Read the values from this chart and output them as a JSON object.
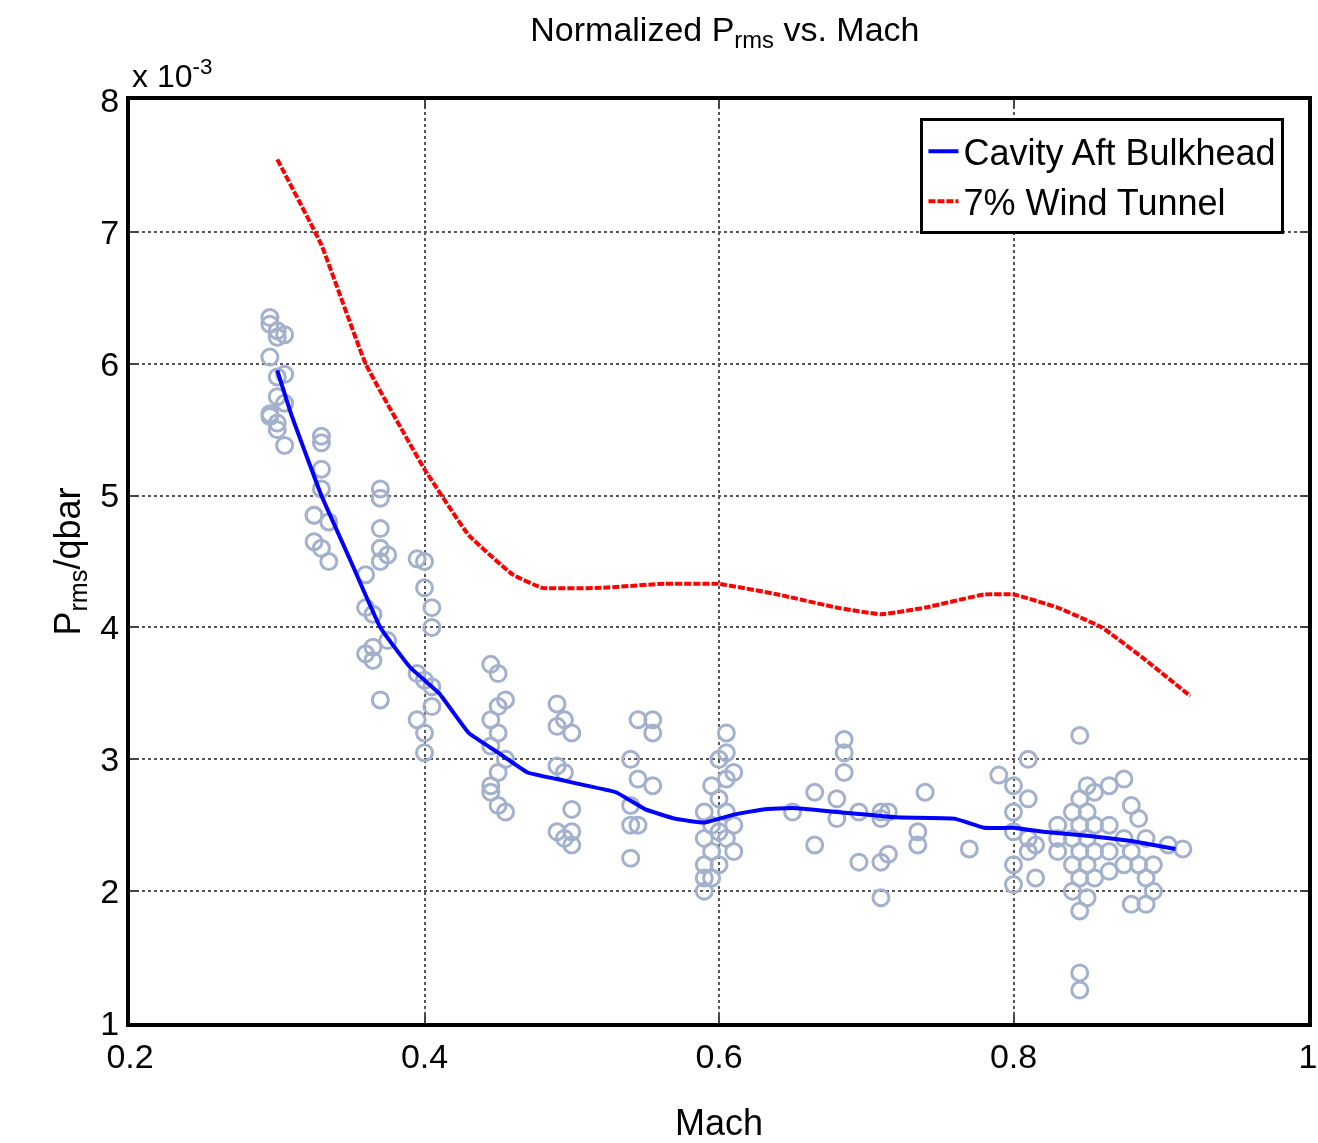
{
  "chart_data": {
    "type": "line",
    "title": "Normalized P$_{rms}$ vs. Mach",
    "xlabel": "Mach",
    "ylabel": "P$_{rms}$/qbar",
    "annotations": [
      "x 10$^{-3}$"
    ],
    "xlim": [
      0.2,
      1
    ],
    "xticks": [
      0.2,
      0.4,
      0.6,
      0.8,
      1
    ],
    "ylim": [
      1,
      8
    ],
    "yticks": [
      1,
      2,
      3,
      4,
      5,
      6,
      7,
      8
    ],
    "grid": true,
    "legend": "top right",
    "series": [
      {
        "type": "scatter",
        "color": "#a3b1cc",
        "marker": "circle",
        "x": [
          0.295,
          0.295,
          0.295,
          0.295,
          0.295,
          0.3,
          0.3,
          0.3,
          0.3,
          0.3,
          0.3,
          0.305,
          0.305,
          0.305,
          0.305,
          0.325,
          0.325,
          0.325,
          0.33,
          0.33,
          0.33,
          0.33,
          0.33,
          0.335,
          0.335,
          0.36,
          0.36,
          0.36,
          0.365,
          0.365,
          0.365,
          0.37,
          0.37,
          0.37,
          0.37,
          0.37,
          0.37,
          0.375,
          0.375,
          0.395,
          0.395,
          0.395,
          0.4,
          0.4,
          0.4,
          0.4,
          0.4,
          0.405,
          0.405,
          0.405,
          0.405,
          0.445,
          0.445,
          0.445,
          0.445,
          0.445,
          0.45,
          0.45,
          0.45,
          0.45,
          0.45,
          0.455,
          0.455,
          0.455,
          0.49,
          0.49,
          0.49,
          0.49,
          0.495,
          0.495,
          0.495,
          0.5,
          0.5,
          0.5,
          0.5,
          0.54,
          0.54,
          0.54,
          0.54,
          0.545,
          0.545,
          0.545,
          0.555,
          0.555,
          0.555,
          0.59,
          0.59,
          0.59,
          0.59,
          0.59,
          0.595,
          0.595,
          0.595,
          0.595,
          0.6,
          0.6,
          0.6,
          0.6,
          0.605,
          0.605,
          0.605,
          0.605,
          0.605,
          0.61,
          0.61,
          0.61,
          0.65,
          0.665,
          0.665,
          0.68,
          0.68,
          0.685,
          0.685,
          0.685,
          0.695,
          0.695,
          0.71,
          0.71,
          0.71,
          0.71,
          0.715,
          0.715,
          0.735,
          0.735,
          0.74,
          0.77,
          0.79,
          0.8,
          0.8,
          0.8,
          0.8,
          0.8,
          0.81,
          0.81,
          0.81,
          0.81,
          0.815,
          0.815,
          0.83,
          0.83,
          0.83,
          0.84,
          0.84,
          0.84,
          0.84,
          0.845,
          0.845,
          0.845,
          0.845,
          0.845,
          0.845,
          0.845,
          0.845,
          0.85,
          0.85,
          0.85,
          0.85,
          0.85,
          0.855,
          0.855,
          0.855,
          0.855,
          0.865,
          0.865,
          0.865,
          0.865,
          0.875,
          0.875,
          0.875,
          0.88,
          0.88,
          0.88,
          0.885,
          0.885,
          0.89,
          0.89,
          0.89,
          0.895,
          0.895,
          0.905,
          0.915
        ],
        "values": [
          6.35,
          6.3,
          6.05,
          5.62,
          5.6,
          6.25,
          6.2,
          5.9,
          5.75,
          5.55,
          5.5,
          6.22,
          5.92,
          5.7,
          5.38,
          4.85,
          4.65,
          4.85,
          5.45,
          5.4,
          5.2,
          5.05,
          4.6,
          4.8,
          4.5,
          4.4,
          4.15,
          3.8,
          4.1,
          3.75,
          3.85,
          5.05,
          4.98,
          4.75,
          4.6,
          4.5,
          3.45,
          4.55,
          3.9,
          4.52,
          3.65,
          3.3,
          4.5,
          4.3,
          3.6,
          3.2,
          3.05,
          4.15,
          4.0,
          3.55,
          3.4,
          3.72,
          3.3,
          3.1,
          2.8,
          2.75,
          3.65,
          3.4,
          3.2,
          2.9,
          2.65,
          3.45,
          3.0,
          2.6,
          3.42,
          3.25,
          2.95,
          2.45,
          3.3,
          2.9,
          2.4,
          3.2,
          2.62,
          2.45,
          2.35,
          3.0,
          2.65,
          2.5,
          2.25,
          3.3,
          2.85,
          2.5,
          3.3,
          3.2,
          2.8,
          2.6,
          2.4,
          2.2,
          2.1,
          2.0,
          2.8,
          2.5,
          2.3,
          2.1,
          3.0,
          2.7,
          2.45,
          2.2,
          3.2,
          3.05,
          2.85,
          2.6,
          2.4,
          2.9,
          2.5,
          2.3,
          2.6,
          2.75,
          2.35,
          2.7,
          2.55,
          3.15,
          3.05,
          2.9,
          2.6,
          2.22,
          2.6,
          2.55,
          2.22,
          1.95,
          2.6,
          2.28,
          2.45,
          2.35,
          2.75,
          2.32,
          2.88,
          2.8,
          2.6,
          2.45,
          2.2,
          2.05,
          3.0,
          2.7,
          2.4,
          2.3,
          2.1,
          2.35,
          2.5,
          2.4,
          2.3,
          2.6,
          2.4,
          2.2,
          2.0,
          3.18,
          2.7,
          2.5,
          2.3,
          2.1,
          1.85,
          1.38,
          1.25,
          2.8,
          2.6,
          2.4,
          2.2,
          1.95,
          2.75,
          2.5,
          2.3,
          2.1,
          2.8,
          2.5,
          2.3,
          2.15,
          2.85,
          2.4,
          2.2,
          2.65,
          2.3,
          1.9,
          2.55,
          2.2,
          2.4,
          2.1,
          1.9,
          2.2,
          2.0,
          2.35,
          2.32
        ]
      },
      {
        "name": "Cavity Aft Bulkhead",
        "color": "#0000ff",
        "marker": "none",
        "line_style": "solid",
        "x": [
          0.3,
          0.31,
          0.33,
          0.35,
          0.37,
          0.39,
          0.41,
          0.43,
          0.45,
          0.47,
          0.49,
          0.51,
          0.53,
          0.55,
          0.57,
          0.59,
          0.61,
          0.63,
          0.65,
          0.68,
          0.72,
          0.76,
          0.78,
          0.8,
          0.82,
          0.85,
          0.88,
          0.91
        ],
        "values": [
          5.95,
          5.6,
          5.0,
          4.5,
          4.0,
          3.7,
          3.5,
          3.2,
          3.05,
          2.9,
          2.85,
          2.8,
          2.75,
          2.62,
          2.55,
          2.52,
          2.58,
          2.62,
          2.63,
          2.6,
          2.56,
          2.55,
          2.48,
          2.48,
          2.45,
          2.42,
          2.38,
          2.32
        ]
      },
      {
        "name": "7% Wind Tunnel",
        "color": "#ff0000",
        "marker": "none",
        "line_style": "dashed",
        "x": [
          0.3,
          0.33,
          0.36,
          0.4,
          0.43,
          0.46,
          0.48,
          0.52,
          0.56,
          0.6,
          0.64,
          0.68,
          0.71,
          0.74,
          0.78,
          0.8,
          0.83,
          0.86,
          0.89,
          0.92
        ],
        "values": [
          7.55,
          6.9,
          6.0,
          5.2,
          4.7,
          4.4,
          4.3,
          4.3,
          4.33,
          4.33,
          4.25,
          4.15,
          4.1,
          4.15,
          4.25,
          4.25,
          4.15,
          4.0,
          3.75,
          3.48
        ]
      }
    ]
  }
}
